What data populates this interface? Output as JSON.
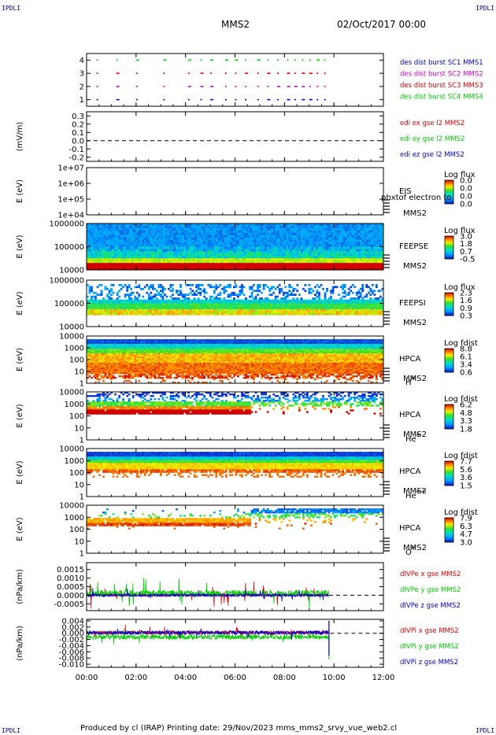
{
  "corners": {
    "tl": "IPDLI",
    "tr": "IPDLI",
    "bl": "IPDLI",
    "br": "IPDLI"
  },
  "header": {
    "title": "MMS2",
    "date": "02/Oct/2017 00:00"
  },
  "footer": {
    "text": "Produced by cl (IRAP)   Printing date: 29/Nov/2023   mms_mms2_srvy_vue_web2.cl"
  },
  "colors": {
    "mms1": "#0000cc",
    "mms2": "#cc00cc",
    "mms3": "#dd0000",
    "mms4": "#00cc00",
    "x": "#dd0000",
    "y": "#00cc00",
    "z": "#0000cc"
  },
  "chart_data": {
    "type": "multi-panel time series",
    "x_ticks": [
      "00:00",
      "02:00",
      "04:00",
      "06:00",
      "08:00",
      "10:00",
      "12:00"
    ],
    "panels": [
      {
        "id": "burst",
        "type": "scatter",
        "yticks": [
          "1",
          "2",
          "3",
          "4"
        ],
        "ylim": [
          0.5,
          4.5
        ],
        "legend": [
          {
            "text": "des dist burst SC1 MMS1",
            "color": "#0000cc"
          },
          {
            "text": "des dist burst SC2 MMS2",
            "color": "#cc00cc"
          },
          {
            "text": "des dist burst SC3 MMS3",
            "color": "#dd0000"
          },
          {
            "text": "des dist burst SC4 MMS4",
            "color": "#00cc00"
          }
        ],
        "marks_hours": [
          0.4,
          1.2,
          2.0,
          3.1,
          4.1,
          4.6,
          5.0,
          5.6,
          6.0,
          6.4,
          6.9,
          7.3,
          7.7,
          8.1,
          8.4,
          8.7,
          9.0,
          9.3,
          9.6
        ]
      },
      {
        "id": "edi",
        "type": "line",
        "ylabel": "(mV/m)",
        "yticks": [
          "0.3",
          "0.2",
          "0.1",
          "0.0",
          "-0.1",
          "-0.2"
        ],
        "ylim": [
          -0.25,
          0.35
        ],
        "legend": [
          {
            "text": "edi ex gse l2 MMS2",
            "color": "#dd0000"
          },
          {
            "text": "edi ey gse l2 MMS2",
            "color": "#00cc00"
          },
          {
            "text": "edi ez gse l2 MMS2",
            "color": "#0000cc"
          }
        ]
      },
      {
        "id": "eis",
        "type": "heatmap",
        "ylabel": "E (eV)",
        "yticks": [
          "1e+07",
          "1e+06",
          "1e+05",
          "1e+04"
        ],
        "instrument": "EIS",
        "product": "phxtof electron to",
        "spacecraft": "MMS2",
        "cbar_title": "Log flux",
        "cbar_ticks": [
          "0.0",
          "0.0",
          "0.0",
          "0.0"
        ],
        "empty": true
      },
      {
        "id": "feepse",
        "type": "heatmap",
        "ylabel": "E (eV)",
        "yticks": [
          "1000000",
          "100000",
          "10000"
        ],
        "instrument": "FEEPSE",
        "spacecraft": "MMS2",
        "cbar_title": "Log flux",
        "cbar_ticks": [
          "3.0",
          "1.8",
          "0.7",
          "-0.5"
        ]
      },
      {
        "id": "feepsi",
        "type": "heatmap",
        "ylabel": "E (eV)",
        "yticks": [
          "1000000",
          "100000",
          "10000"
        ],
        "instrument": "FEEPSI",
        "spacecraft": "MMS2",
        "cbar_title": "Log flux",
        "cbar_ticks": [
          "2.3",
          "1.6",
          "0.9",
          "0.3"
        ]
      },
      {
        "id": "hpca_h",
        "type": "heatmap",
        "ylabel": "E (eV)",
        "yticks": [
          "10000",
          "1000",
          "100",
          "10",
          "1"
        ],
        "instrument": "HPCA",
        "spacecraft": "MMS2",
        "species": "H",
        "charge": "+",
        "cbar_title": "Log fdist",
        "cbar_ticks": [
          "8.8",
          "6.1",
          "3.4",
          "0.6"
        ]
      },
      {
        "id": "hpca_he",
        "type": "heatmap",
        "ylabel": "E (eV)",
        "yticks": [
          "10000",
          "1000",
          "100",
          "10",
          "1"
        ],
        "instrument": "HPCA",
        "spacecraft": "MMS2",
        "species": "He",
        "charge": "+",
        "cbar_title": "Log fdist",
        "cbar_ticks": [
          "6.2",
          "4.8",
          "3.3",
          "1.8"
        ]
      },
      {
        "id": "hpca_hepp",
        "type": "heatmap",
        "ylabel": "E (eV)",
        "yticks": [
          "10000",
          "1000",
          "100",
          "10",
          "1"
        ],
        "instrument": "HPCA",
        "spacecraft": "MMS2",
        "species": "He",
        "charge": "++",
        "cbar_title": "Log fdist",
        "cbar_ticks": [
          "7.7",
          "5.6",
          "3.6",
          "1.5"
        ]
      },
      {
        "id": "hpca_o",
        "type": "heatmap",
        "ylabel": "E (eV)",
        "yticks": [
          "10000",
          "1000",
          "100",
          "10",
          "1"
        ],
        "instrument": "HPCA",
        "spacecraft": "MMS2",
        "species": "O",
        "charge": "+",
        "cbar_title": "Log fdist",
        "cbar_ticks": [
          "7.9",
          "6.3",
          "4.7",
          "3.0"
        ]
      },
      {
        "id": "divpe",
        "type": "line",
        "ylabel": "(nPa/km)",
        "yticks": [
          "0.0015",
          "0.0010",
          "0.0005",
          "0.0000",
          "-0.0005"
        ],
        "ylim": [
          -0.0009,
          0.0019
        ],
        "legend": [
          {
            "text": "dIVPe x gse MMS2",
            "color": "#dd0000"
          },
          {
            "text": "dIVPe y gse MMS2",
            "color": "#00cc00"
          },
          {
            "text": "dIVPe z gse MMS2",
            "color": "#0000cc"
          }
        ]
      },
      {
        "id": "divpi",
        "type": "line",
        "ylabel": "(nPa/km)",
        "yticks": [
          "0.004",
          "0.002",
          "0.000",
          "-0.002",
          "-0.004",
          "-0.006",
          "-0.008",
          "-0.010"
        ],
        "ylim": [
          -0.011,
          0.0045
        ],
        "legend": [
          {
            "text": "dIVPi x gse MMS2",
            "color": "#dd0000"
          },
          {
            "text": "dIVPi y gse MMS2",
            "color": "#00cc00"
          },
          {
            "text": "dIVPi z gse MMS2",
            "color": "#0000cc"
          }
        ]
      }
    ]
  }
}
